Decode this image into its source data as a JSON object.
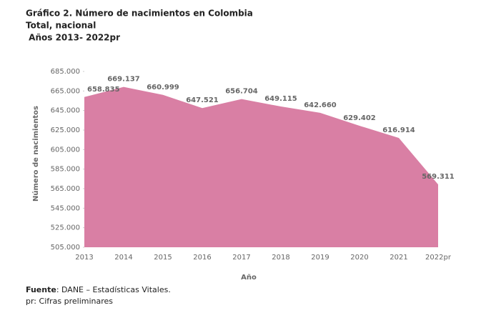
{
  "chart_data": {
    "type": "area",
    "title_lines": [
      "Gráfico 2. Número de nacimientos en Colombia",
      "Total, nacional",
      " Años 2013- 2022pr"
    ],
    "x_label": "Año",
    "y_label": "Número de nacimientos",
    "categories": [
      "2013",
      "2014",
      "2015",
      "2016",
      "2017",
      "2018",
      "2019",
      "2020",
      "2021",
      "2022pr"
    ],
    "values": [
      658835,
      669137,
      660999,
      647521,
      656704,
      649115,
      642660,
      629402,
      616914,
      569311
    ],
    "value_labels": [
      "658.835",
      "669.137",
      "660.999",
      "647.521",
      "656.704",
      "649.115",
      "642.660",
      "629.402",
      "616.914",
      "569.311"
    ],
    "color": "#d97fa4",
    "ylim": [
      505000,
      685000
    ],
    "yticks": [
      {
        "value": 505000,
        "label": "505.000"
      },
      {
        "value": 525000,
        "label": "525.000"
      },
      {
        "value": 545000,
        "label": "545.000"
      },
      {
        "value": 565000,
        "label": "565.000"
      },
      {
        "value": 585000,
        "label": "585.000"
      },
      {
        "value": 605000,
        "label": "605.000"
      },
      {
        "value": 625000,
        "label": "625.000"
      },
      {
        "value": 645000,
        "label": "645.000"
      },
      {
        "value": 665000,
        "label": "665.000"
      },
      {
        "value": 685000,
        "label": "685.000"
      }
    ],
    "source_label": "Fuente",
    "source": ": DANE – Estadísticas Vitales.",
    "note": "pr: Cifras preliminares"
  }
}
